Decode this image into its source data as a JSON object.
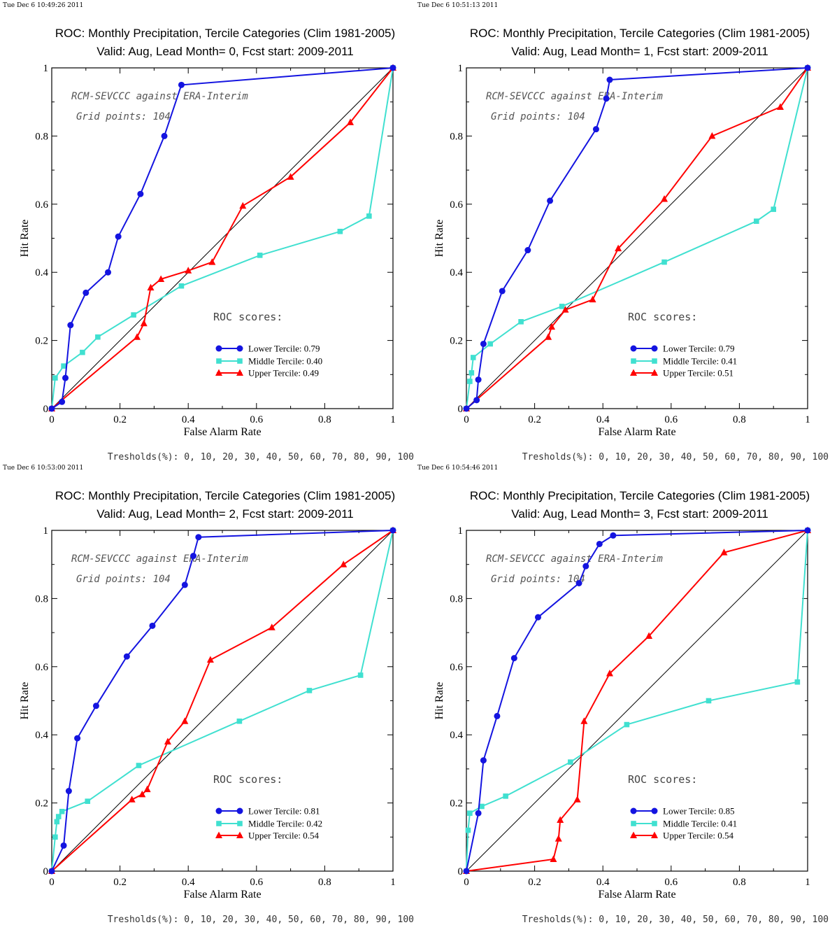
{
  "colors": {
    "lower": "#1414e0",
    "middle": "#40e0d0",
    "upper": "#ff0000",
    "diagonal": "#000000",
    "frame": "#000000"
  },
  "chart_data": [
    {
      "type": "line",
      "timestamp": "Tue Dec  6 10:49:26 2011",
      "title": "ROC: Monthly Precipitation, Tercile Categories (Clim 1981-2005)",
      "subtitle": "Valid: Aug, Lead Month= 0, Fcst start: 2009-2011",
      "xlabel": "False Alarm Rate",
      "ylabel": "Hit Rate",
      "xlim": [
        0,
        1
      ],
      "ylim": [
        0,
        1
      ],
      "xticks": [
        "0",
        "0.2",
        "0.4",
        "0.6",
        "0.8",
        "1"
      ],
      "yticks": [
        "0",
        "0.2",
        "0.4",
        "0.6",
        "0.8",
        "1"
      ],
      "annotations": [
        "RCM-SEVCCC against ERA-Interim",
        "Grid points:  104"
      ],
      "roc_heading": "ROC scores:",
      "legend_placement": "bottom-right",
      "thresholds_text": "Tresholds(%): 0, 10, 20, 30, 40, 50, 60, 70, 80, 90, 100",
      "series": [
        {
          "name": "Lower Tercile: 0.79",
          "marker": "circle",
          "x": [
            0,
            0.03,
            0.04,
            0.055,
            0.1,
            0.165,
            0.195,
            0.26,
            0.33,
            0.38,
            1
          ],
          "y": [
            0,
            0.02,
            0.09,
            0.245,
            0.34,
            0.4,
            0.505,
            0.63,
            0.8,
            0.95,
            1
          ]
        },
        {
          "name": "Middle Tercile: 0.40",
          "marker": "square",
          "x": [
            0,
            0.01,
            0.035,
            0.09,
            0.135,
            0.24,
            0.38,
            0.61,
            0.845,
            0.93,
            1
          ],
          "y": [
            0,
            0.09,
            0.125,
            0.165,
            0.21,
            0.275,
            0.36,
            0.45,
            0.52,
            0.565,
            1
          ]
        },
        {
          "name": "Upper Tercile: 0.49",
          "marker": "triangle",
          "x": [
            0,
            0.25,
            0.27,
            0.29,
            0.32,
            0.4,
            0.47,
            0.56,
            0.7,
            0.875,
            1
          ],
          "y": [
            0,
            0.21,
            0.25,
            0.355,
            0.38,
            0.405,
            0.43,
            0.595,
            0.68,
            0.84,
            1
          ]
        }
      ]
    },
    {
      "type": "line",
      "timestamp": "Tue Dec  6 10:51:13 2011",
      "title": "ROC: Monthly Precipitation, Tercile Categories (Clim 1981-2005)",
      "subtitle": "Valid: Aug, Lead Month= 1, Fcst start: 2009-2011",
      "xlabel": "False Alarm Rate",
      "ylabel": "Hit Rate",
      "xlim": [
        0,
        1
      ],
      "ylim": [
        0,
        1
      ],
      "xticks": [
        "0",
        "0.2",
        "0.4",
        "0.6",
        "0.8",
        "1"
      ],
      "yticks": [
        "0",
        "0.2",
        "0.4",
        "0.6",
        "0.8",
        "1"
      ],
      "annotations": [
        "RCM-SEVCCC against ERA-Interim",
        "Grid points:  104"
      ],
      "roc_heading": "ROC scores:",
      "legend_placement": "bottom-right",
      "thresholds_text": "Tresholds(%): 0, 10, 20, 30, 40, 50, 60, 70, 80, 90, 100",
      "series": [
        {
          "name": "Lower Tercile: 0.79",
          "marker": "circle",
          "x": [
            0,
            0.03,
            0.035,
            0.05,
            0.105,
            0.18,
            0.245,
            0.38,
            0.41,
            0.42,
            1
          ],
          "y": [
            0,
            0.025,
            0.085,
            0.19,
            0.345,
            0.465,
            0.61,
            0.82,
            0.91,
            0.965,
            1
          ]
        },
        {
          "name": "Middle Tercile: 0.41",
          "marker": "square",
          "x": [
            0,
            0.01,
            0.015,
            0.02,
            0.07,
            0.16,
            0.28,
            0.58,
            0.85,
            0.9,
            1
          ],
          "y": [
            0,
            0.08,
            0.105,
            0.15,
            0.19,
            0.255,
            0.3,
            0.43,
            0.55,
            0.585,
            1
          ]
        },
        {
          "name": "Upper Tercile: 0.51",
          "marker": "triangle",
          "x": [
            0,
            0.24,
            0.25,
            0.29,
            0.37,
            0.445,
            0.58,
            0.72,
            0.92,
            1
          ],
          "y": [
            0,
            0.21,
            0.24,
            0.29,
            0.32,
            0.47,
            0.615,
            0.8,
            0.885,
            1
          ]
        }
      ]
    },
    {
      "type": "line",
      "timestamp": "Tue Dec  6 10:53:00 2011",
      "title": "ROC: Monthly Precipitation, Tercile Categories (Clim 1981-2005)",
      "subtitle": "Valid: Aug, Lead Month= 2, Fcst start: 2009-2011",
      "xlabel": "False Alarm Rate",
      "ylabel": "Hit Rate",
      "xlim": [
        0,
        1
      ],
      "ylim": [
        0,
        1
      ],
      "xticks": [
        "0",
        "0.2",
        "0.4",
        "0.6",
        "0.8",
        "1"
      ],
      "yticks": [
        "0",
        "0.2",
        "0.4",
        "0.6",
        "0.8",
        "1"
      ],
      "annotations": [
        "RCM-SEVCCC against ERA-Interim",
        "Grid points:  104"
      ],
      "roc_heading": "ROC scores:",
      "legend_placement": "bottom-right",
      "thresholds_text": "Tresholds(%): 0, 10, 20, 30, 40, 50, 60, 70, 80, 90, 100",
      "series": [
        {
          "name": "Lower Tercile: 0.81",
          "marker": "circle",
          "x": [
            0,
            0.035,
            0.05,
            0.075,
            0.13,
            0.22,
            0.295,
            0.39,
            0.415,
            0.43,
            1
          ],
          "y": [
            0,
            0.075,
            0.235,
            0.39,
            0.485,
            0.63,
            0.72,
            0.84,
            0.925,
            0.98,
            1
          ]
        },
        {
          "name": "Middle Tercile: 0.42",
          "marker": "square",
          "x": [
            0,
            0.01,
            0.015,
            0.02,
            0.03,
            0.105,
            0.255,
            0.55,
            0.755,
            0.905,
            1
          ],
          "y": [
            0,
            0.1,
            0.145,
            0.16,
            0.175,
            0.205,
            0.31,
            0.44,
            0.53,
            0.575,
            1
          ]
        },
        {
          "name": "Upper Tercile: 0.54",
          "marker": "triangle",
          "x": [
            0,
            0.235,
            0.265,
            0.28,
            0.34,
            0.39,
            0.465,
            0.645,
            0.855,
            1
          ],
          "y": [
            0,
            0.21,
            0.225,
            0.24,
            0.38,
            0.44,
            0.62,
            0.715,
            0.9,
            1
          ]
        }
      ]
    },
    {
      "type": "line",
      "timestamp": "Tue Dec  6 10:54:46 2011",
      "title": "ROC: Monthly Precipitation, Tercile Categories (Clim 1981-2005)",
      "subtitle": "Valid: Aug, Lead Month= 3, Fcst start: 2009-2011",
      "xlabel": "False Alarm Rate",
      "ylabel": "Hit Rate",
      "xlim": [
        0,
        1
      ],
      "ylim": [
        0,
        1
      ],
      "xticks": [
        "0",
        "0.2",
        "0.4",
        "0.6",
        "0.8",
        "1"
      ],
      "yticks": [
        "0",
        "0.2",
        "0.4",
        "0.6",
        "0.8",
        "1"
      ],
      "annotations": [
        "RCM-SEVCCC against ERA-Interim",
        "Grid points:  104"
      ],
      "roc_heading": "ROC scores:",
      "legend_placement": "bottom-right",
      "thresholds_text": "Tresholds(%): 0, 10, 20, 30, 40, 50, 60, 70, 80, 90, 100",
      "series": [
        {
          "name": "Lower Tercile: 0.85",
          "marker": "circle",
          "x": [
            0,
            0.035,
            0.05,
            0.09,
            0.14,
            0.21,
            0.33,
            0.35,
            0.39,
            0.43,
            1
          ],
          "y": [
            0,
            0.17,
            0.325,
            0.455,
            0.625,
            0.745,
            0.845,
            0.895,
            0.96,
            0.985,
            1
          ]
        },
        {
          "name": "Middle Tercile: 0.41",
          "marker": "square",
          "x": [
            0,
            0.005,
            0.01,
            0.045,
            0.115,
            0.305,
            0.47,
            0.71,
            0.97,
            1
          ],
          "y": [
            0,
            0.12,
            0.17,
            0.19,
            0.22,
            0.32,
            0.43,
            0.5,
            0.555,
            1
          ]
        },
        {
          "name": "Upper Tercile: 0.54",
          "marker": "triangle",
          "x": [
            0,
            0.255,
            0.27,
            0.275,
            0.325,
            0.345,
            0.42,
            0.535,
            0.755,
            1
          ],
          "y": [
            0,
            0.035,
            0.095,
            0.15,
            0.21,
            0.44,
            0.58,
            0.69,
            0.935,
            1
          ]
        }
      ]
    }
  ]
}
